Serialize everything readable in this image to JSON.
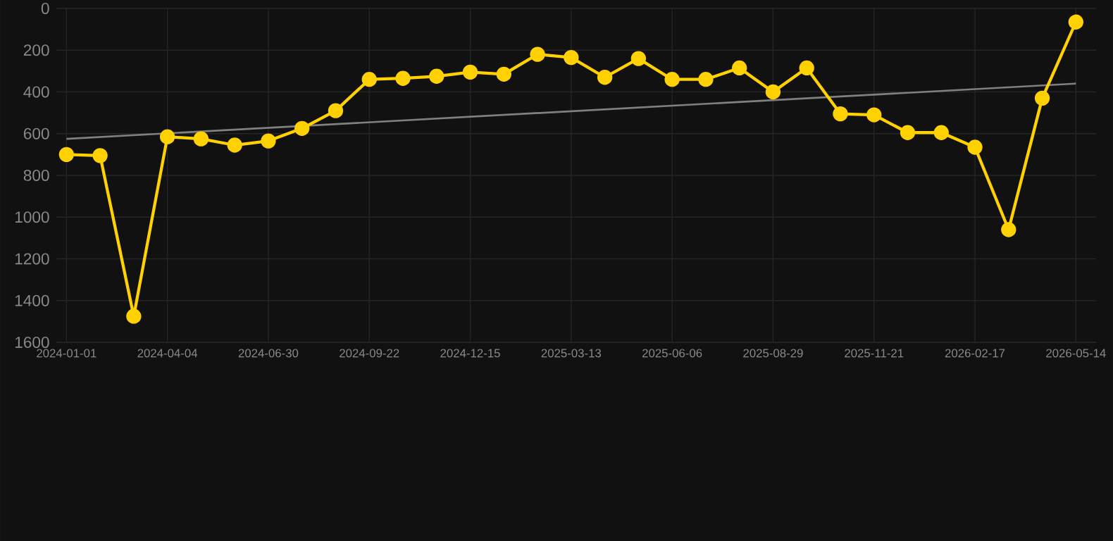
{
  "chart_data": {
    "type": "line",
    "categories": [
      "2024-01-01",
      null,
      null,
      "2024-04-04",
      null,
      null,
      "2024-06-30",
      null,
      null,
      "2024-09-22",
      null,
      null,
      "2024-12-15",
      null,
      null,
      "2025-03-13",
      null,
      null,
      "2025-06-06",
      null,
      null,
      "2025-08-29",
      null,
      null,
      "2025-11-21",
      null,
      null,
      "2026-02-17",
      null,
      null,
      "2026-05-14"
    ],
    "series": [
      {
        "color": "#ffd100",
        "marker": "circle",
        "values": [
          700,
          705,
          1475,
          615,
          625,
          655,
          635,
          575,
          490,
          340,
          335,
          325,
          305,
          315,
          220,
          235,
          330,
          240,
          340,
          340,
          285,
          400,
          285,
          505,
          510,
          595,
          595,
          665,
          1060,
          430,
          65
        ]
      },
      {
        "type": "line",
        "color": "#808080",
        "marker": "none",
        "values": [
          625,
          null,
          null,
          null,
          null,
          null,
          null,
          null,
          null,
          null,
          null,
          null,
          null,
          null,
          null,
          null,
          null,
          null,
          null,
          null,
          null,
          null,
          null,
          null,
          null,
          null,
          null,
          null,
          null,
          null,
          360
        ]
      }
    ],
    "ylim": [
      1600,
      0
    ],
    "yticks": [
      0,
      200,
      400,
      600,
      800,
      1000,
      1200,
      1400,
      1600
    ],
    "grid": true,
    "line_style": "solid"
  }
}
